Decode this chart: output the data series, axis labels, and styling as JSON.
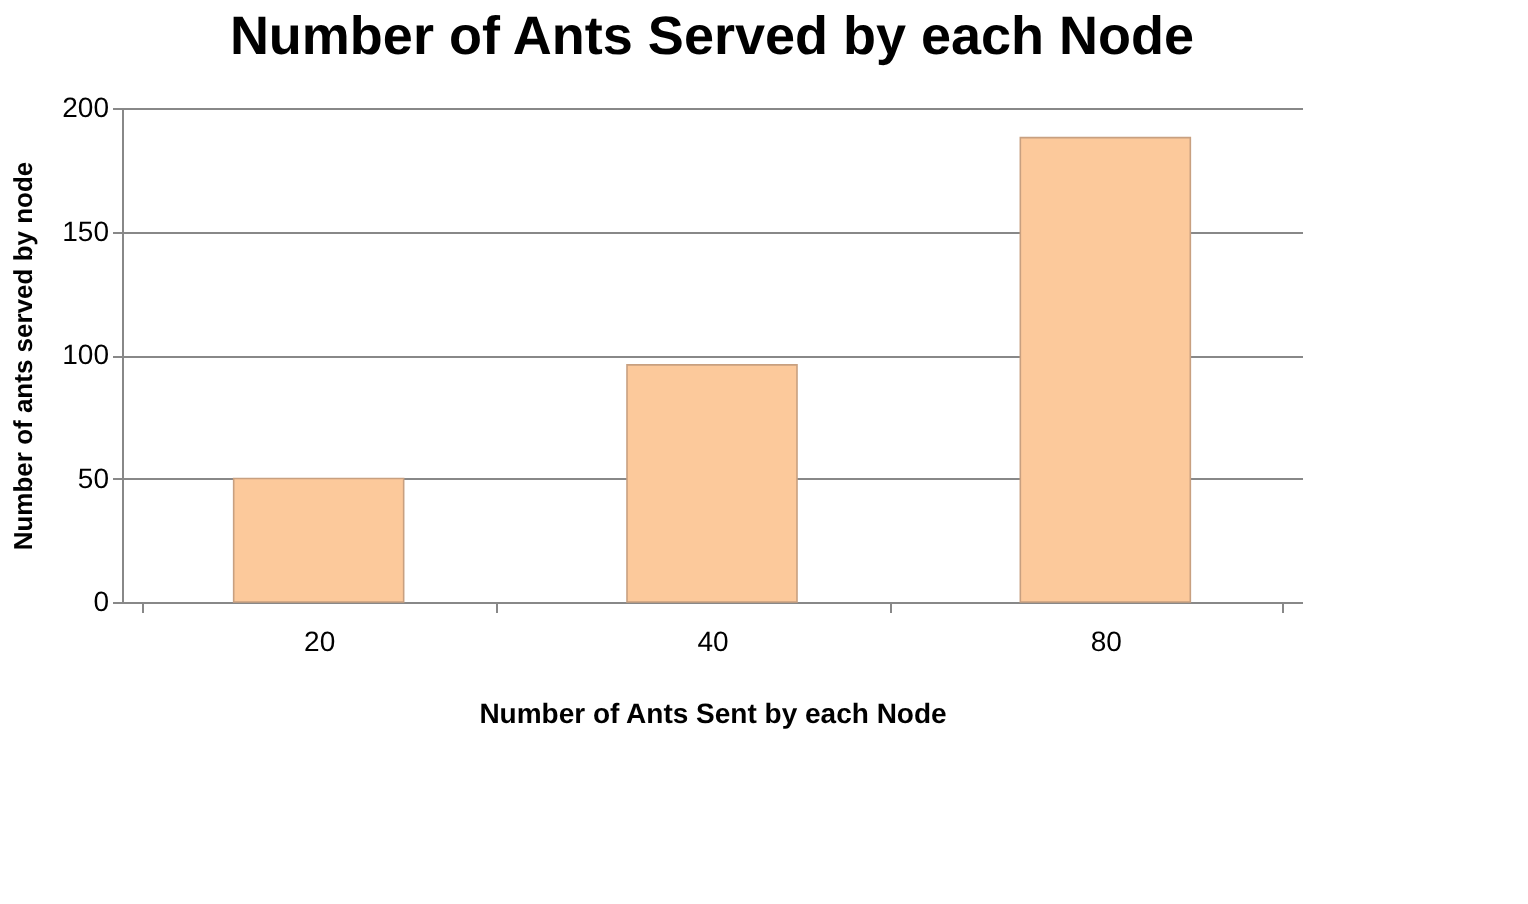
{
  "chart_data": {
    "type": "bar",
    "title": "Number of Ants Served by each Node",
    "xlabel": "Number of Ants Sent by each Node",
    "ylabel": "Number of ants served by node",
    "categories": [
      "20",
      "40",
      "80"
    ],
    "values": [
      50,
      96,
      188
    ],
    "color": "#fcc99b",
    "ylim": [
      0,
      200
    ],
    "yticks": [
      0,
      50,
      100,
      150,
      200
    ],
    "grid": "y"
  }
}
